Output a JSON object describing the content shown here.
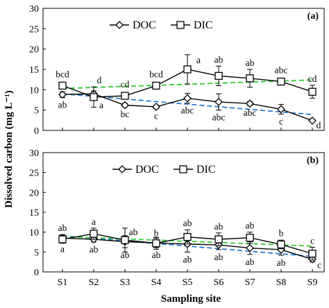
{
  "chart_data": {
    "type": "line",
    "xlabel": "Sampling site",
    "ylabel": "Dissolved carbon  (mg L⁻¹)",
    "categories": [
      "S1",
      "S2",
      "S3",
      "S4",
      "S5",
      "S6",
      "S7",
      "S8",
      "S9"
    ],
    "ylim": [
      0,
      30
    ],
    "yticks": [
      0,
      5,
      10,
      15,
      20,
      25,
      30
    ],
    "legend": [
      "DOC",
      "DIC"
    ],
    "legend_position": "top-left",
    "colors": {
      "DOC": "#000000",
      "DIC": "#000000",
      "DOC_trend": "#2a7bd6",
      "DIC_trend": "#33cc33"
    },
    "panels": [
      {
        "tag": "(a)",
        "series": [
          {
            "name": "DOC",
            "marker": "diamond",
            "values": [
              8.8,
              9.0,
              6.2,
              5.8,
              7.9,
              7.0,
              6.6,
              5.2,
              2.4
            ],
            "errors": [
              0.7,
              0.7,
              0.4,
              0.4,
              1.2,
              2.0,
              0.5,
              1.2,
              0.3
            ],
            "labels": [
              "ab",
              "a",
              "bc",
              "c",
              "abc",
              "abc",
              "abc",
              "c",
              "d"
            ],
            "trend": [
              9.0,
              3.9
            ]
          },
          {
            "name": "DIC",
            "marker": "square",
            "values": [
              11.0,
              8.2,
              8.5,
              11.0,
              15.0,
              13.4,
              12.8,
              12.0,
              9.5
            ],
            "errors": [
              0.6,
              2.5,
              0.6,
              0.6,
              3.6,
              2.4,
              2.2,
              0.7,
              1.6
            ],
            "labels": [
              "bcd",
              "d",
              "cd",
              "bcd",
              "a",
              "ab",
              "ab",
              "abc",
              "cd"
            ],
            "trend": [
              10.3,
              12.4
            ]
          }
        ]
      },
      {
        "tag": "(b)",
        "series": [
          {
            "name": "DOC",
            "marker": "diamond",
            "values": [
              8.5,
              8.2,
              7.6,
              7.3,
              7.0,
              6.8,
              6.0,
              5.6,
              3.2
            ],
            "errors": [
              0.9,
              0.7,
              1.5,
              1.2,
              2.0,
              1.2,
              1.6,
              1.4,
              0.7
            ],
            "labels": [
              "a",
              "ab",
              "ab",
              "ab",
              "ab",
              "ab",
              "ab",
              "ab",
              "c"
            ],
            "trend": [
              9.1,
              3.9
            ]
          },
          {
            "name": "DIC",
            "marker": "square",
            "values": [
              8.2,
              9.6,
              8.0,
              7.2,
              8.8,
              8.2,
              8.6,
              6.9,
              4.6
            ],
            "errors": [
              1.0,
              1.4,
              3.0,
              1.5,
              1.8,
              1.6,
              1.4,
              1.1,
              1.6
            ],
            "labels": [
              "ab",
              "a",
              "ab",
              "b",
              "ab",
              "ab",
              "ab",
              "b",
              "c"
            ],
            "trend": [
              8.9,
              6.5
            ]
          }
        ]
      }
    ]
  }
}
